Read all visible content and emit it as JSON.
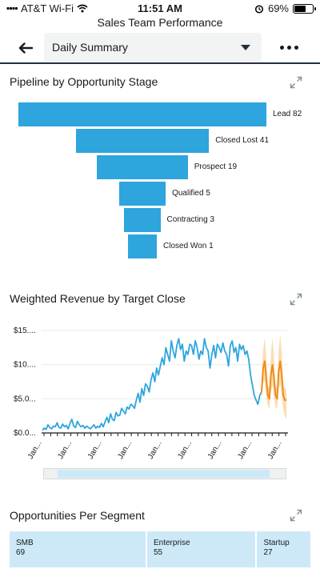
{
  "status_bar": {
    "carrier": "AT&T Wi-Fi",
    "time": "11:51 AM",
    "battery": "69%",
    "battery_level": 0.69
  },
  "app": {
    "title": "Sales Team Performance"
  },
  "header": {
    "dropdown_value": "Daily Summary"
  },
  "pipeline": {
    "title": "Pipeline by Opportunity Stage",
    "chart_data": {
      "type": "bar",
      "categories": [
        "Lead",
        "Closed Lost",
        "Prospect",
        "Qualified",
        "Contracting",
        "Closed Won"
      ],
      "values": [
        82,
        41,
        19,
        5,
        3,
        1
      ],
      "labels": [
        "Lead 82",
        "Closed Lost 41",
        "Prospect 19",
        "Qualified 5",
        "Contracting 3",
        "Closed Won 1"
      ]
    }
  },
  "revenue": {
    "title": "Weighted Revenue by Target Close",
    "chart_data": {
      "type": "line",
      "y_ticks": [
        "$0.0...",
        "$5.0...",
        "$10....",
        "$15...."
      ],
      "y_tick_values": [
        0,
        5,
        10,
        15
      ],
      "ylim": [
        0,
        15
      ],
      "x_tick_label": "Jan...",
      "x_tick_count": 9,
      "series": [
        {
          "values": [
            0.4,
            0.7,
            0.5,
            1.2,
            0.8,
            0.6,
            1.0,
            0.9,
            1.5,
            0.8,
            0.7,
            1.3,
            0.9,
            1.1,
            0.6,
            1.4,
            2.0,
            1.0,
            0.8,
            1.7,
            1.2,
            0.9,
            1.1,
            0.7,
            1.0,
            0.8,
            0.6,
            0.9,
            1.2,
            0.7,
            1.0,
            0.8,
            1.4,
            0.9,
            1.6,
            2.3,
            1.5,
            2.8,
            2.0,
            1.8,
            3.0,
            2.5,
            2.6,
            3.6,
            3.2,
            2.8,
            3.8,
            3.5,
            4.2,
            4.0,
            3.6,
            4.8,
            5.8,
            4.5,
            6.5,
            5.5,
            7.2,
            6.8,
            6.0,
            7.8,
            8.8,
            7.5,
            9.5,
            8.5,
            9.8,
            11.0,
            10.0,
            12.5,
            11.5,
            10.5,
            13.5,
            12.0,
            11.0,
            12.8,
            13.8,
            12.2,
            13.0,
            10.5,
            12.0,
            11.5,
            13.0,
            12.8,
            11.5,
            13.5,
            12.5,
            10.8,
            12.0,
            11.5,
            13.8,
            12.5,
            12.0,
            9.5,
            11.5,
            12.8,
            11.0,
            13.0,
            12.5,
            11.8,
            13.2,
            12.0,
            11.5,
            9.8,
            12.8,
            13.5,
            11.8,
            12.5,
            10.5,
            13.0,
            12.2,
            12.8,
            11.5,
            12.0,
            10.8,
            8.5,
            7.0,
            5.5,
            4.8,
            4.2,
            5.5,
            6.0
          ]
        },
        {
          "values": [
            6.0,
            9.5,
            10.5,
            8.0,
            5.5,
            5.0,
            8.5,
            10.0,
            8.0,
            5.5,
            5.0,
            9.0,
            10.5,
            8.5,
            5.5,
            4.8,
            4.8
          ],
          "band_upper": [
            7.5,
            12.0,
            14.0,
            11.0,
            7.0,
            6.5,
            11.5,
            14.0,
            11.0,
            7.0,
            6.5,
            12.0,
            14.5,
            11.5,
            7.0,
            6.5,
            6.5
          ],
          "band_lower": [
            4.5,
            7.5,
            7.5,
            5.5,
            4.0,
            3.5,
            6.0,
            7.0,
            5.5,
            3.8,
            3.5,
            6.5,
            7.0,
            5.5,
            3.5,
            2.5,
            2.0
          ]
        }
      ]
    }
  },
  "segments": {
    "title": "Opportunities Per Segment",
    "items": [
      {
        "name": "SMB",
        "value": "69",
        "count": 69
      },
      {
        "name": "Enterprise",
        "value": "55",
        "count": 55
      },
      {
        "name": "Startup",
        "value": "27",
        "count": 27
      }
    ]
  },
  "colors": {
    "accent_blue": "#2ea5dd",
    "forecast_orange": "#f08c1a",
    "forecast_band": "#f9d7a3",
    "header_border": "#232f3e",
    "segment_fill": "#cde9f7"
  }
}
